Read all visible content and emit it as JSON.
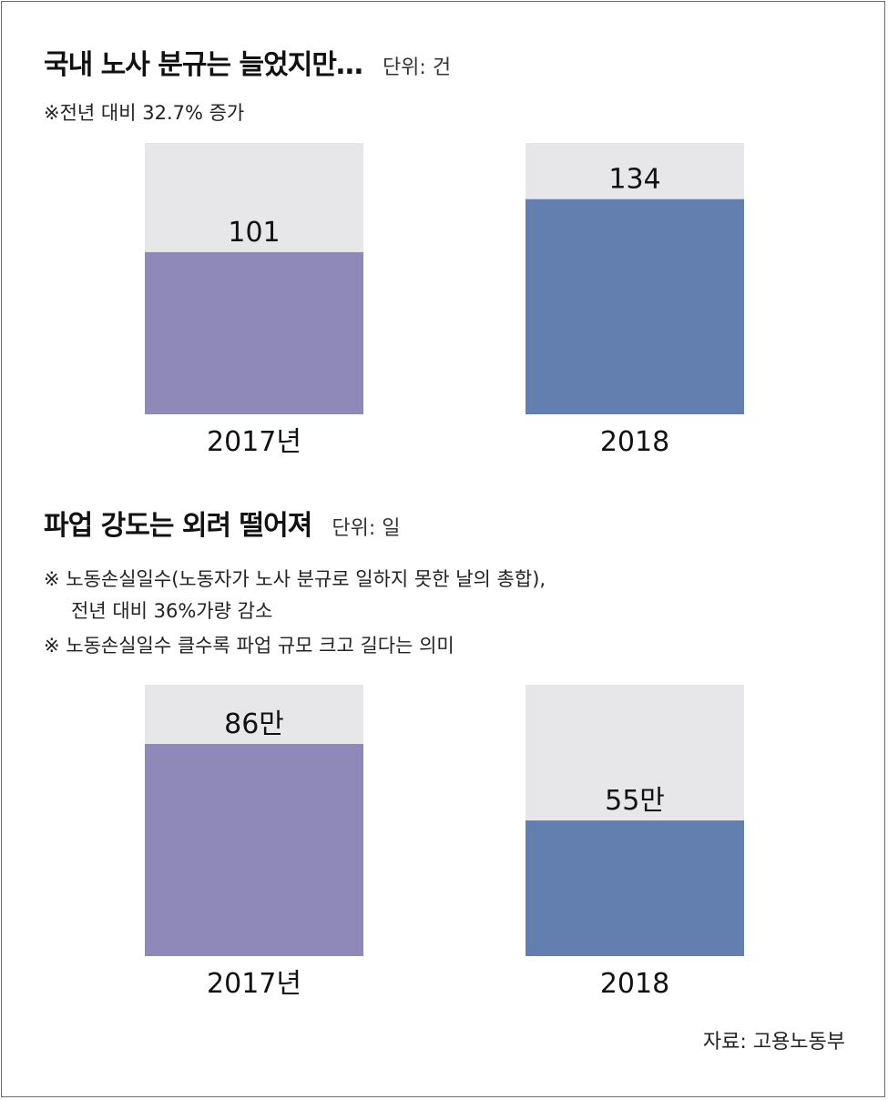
{
  "chart_data": [
    {
      "type": "bar",
      "title": "국내 노사 분규는 늘었지만…",
      "unit_label": "단위: 건",
      "notes": [
        "※전년 대비 32.7% 증가"
      ],
      "categories": [
        "2017년",
        "2018"
      ],
      "values": [
        101,
        134
      ],
      "value_labels": [
        "101",
        "134"
      ],
      "ylim": [
        0,
        169
      ],
      "colors": [
        "#8e89b8",
        "#637fb0"
      ],
      "track_color": "#e7e7e9"
    },
    {
      "type": "bar",
      "title": "파업 강도는 외려 떨어져",
      "unit_label": "단위: 일",
      "notes": [
        "※ 노동손실일수(노동자가 노사 분규로 일하지 못한 날의 총합),",
        "전년 대비 36%가량 감소",
        "※ 노동손실일수 클수록 파업 규모 크고 길다는 의미"
      ],
      "categories": [
        "2017년",
        "2018"
      ],
      "values": [
        860000,
        550000
      ],
      "value_labels": [
        "86만",
        "55만"
      ],
      "ylim": [
        0,
        1100000
      ],
      "colors": [
        "#8e89b8",
        "#637fb0"
      ],
      "track_color": "#e7e7e9"
    }
  ],
  "source": "자료: 고용노동부"
}
